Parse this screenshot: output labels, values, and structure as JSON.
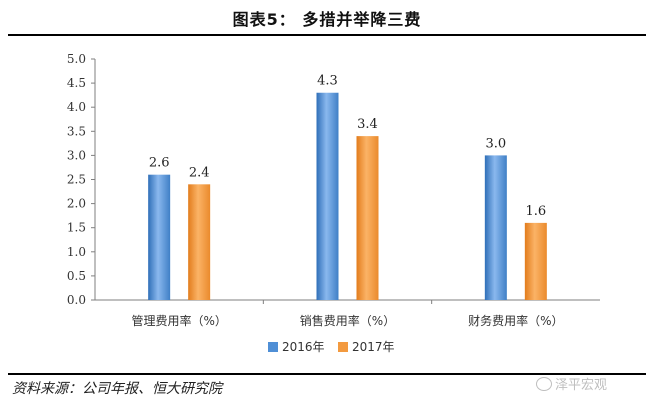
{
  "title": "图表5：  多措并举降三费",
  "source": "资料来源：公司年报、恒大研究院",
  "watermark": "泽平宏观",
  "chart_data": {
    "type": "bar",
    "categories": [
      "管理费用率（%）",
      "销售费用率（%）",
      "财务费用率（%）"
    ],
    "series": [
      {
        "name": "2016年",
        "values": [
          2.6,
          4.3,
          3.0
        ],
        "color": "#4f8fd6"
      },
      {
        "name": "2017年",
        "values": [
          2.4,
          3.4,
          1.6
        ],
        "color": "#f39a3f"
      }
    ],
    "data_labels": [
      [
        "2.6",
        "4.3",
        "3.0"
      ],
      [
        "2.4",
        "3.4",
        "1.6"
      ]
    ],
    "ylim": [
      0,
      5
    ],
    "yticks": [
      0,
      0.5,
      1,
      1.5,
      2,
      2.5,
      3,
      3.5,
      4,
      4.5,
      5
    ],
    "ytick_labels": [
      "0.0",
      "0.5",
      "1.0",
      "1.5",
      "2.0",
      "2.5",
      "3.0",
      "3.5",
      "4.0",
      "4.5",
      "5.0"
    ],
    "legend_position": "bottom",
    "grid": false
  }
}
